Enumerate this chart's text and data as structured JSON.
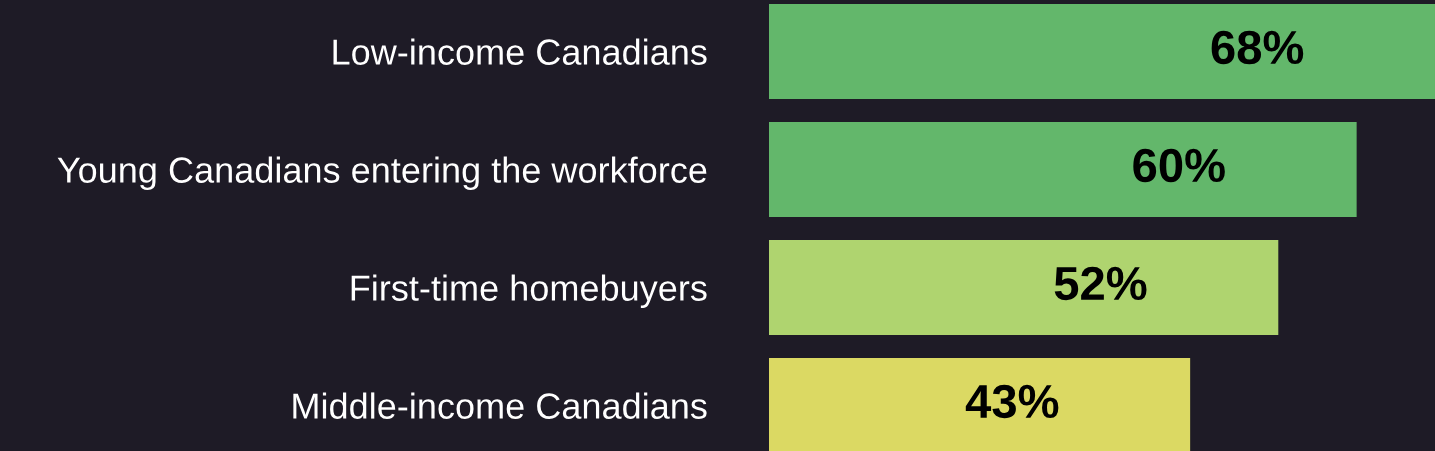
{
  "chart_data": {
    "type": "bar",
    "orientation": "horizontal",
    "categories": [
      "Low-income Canadians",
      "Young Canadians entering the workforce",
      "First-time homebuyers",
      "Middle-income Canadians"
    ],
    "values": [
      68,
      60,
      52,
      43
    ],
    "colors": [
      "#63b76b",
      "#63b76b",
      "#afd46f",
      "#dbd963"
    ],
    "value_labels": [
      "68%",
      "60%",
      "52%",
      "43%"
    ]
  }
}
